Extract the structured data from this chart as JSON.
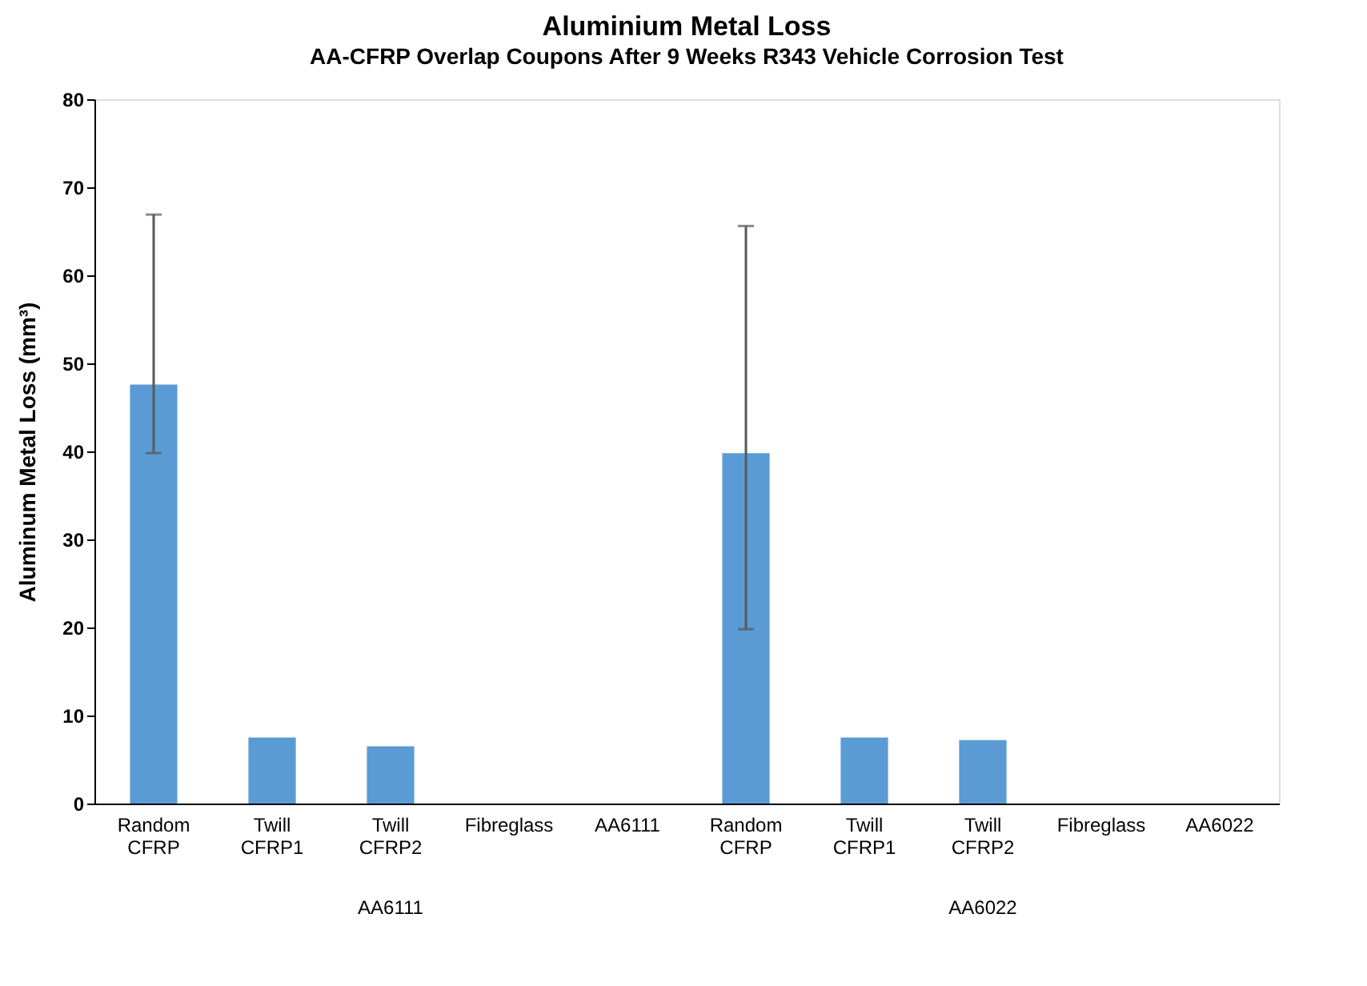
{
  "chart_data": {
    "type": "bar",
    "title": "Aluminium Metal Loss",
    "subtitle": "AA-CFRP Overlap Coupons After 9 Weeks R343 Vehicle Corrosion Test",
    "ylabel": "Aluminum Metal Loss (mm³)",
    "categories": [
      "Random CFRP",
      "Twill CFRP1",
      "Twill CFRP2",
      "Fibreglass",
      "AA6111",
      "Random CFRP",
      "Twill CFRP1",
      "Twill CFRP2",
      "Fibreglass",
      "AA6022"
    ],
    "values": [
      47.6,
      7.5,
      6.5,
      0,
      0,
      39.8,
      7.5,
      7.2,
      0,
      0
    ],
    "errors": [
      [
        39.8,
        66.9
      ],
      null,
      null,
      null,
      null,
      [
        19.8,
        65.6
      ],
      null,
      null,
      null,
      null
    ],
    "color": "#5b9bd5",
    "ylim": [
      0,
      80
    ],
    "yticks": [
      0,
      10,
      20,
      30,
      40,
      50,
      60,
      70,
      80
    ],
    "grid": false,
    "annotations": [
      "AA6111",
      "AA6022"
    ]
  }
}
